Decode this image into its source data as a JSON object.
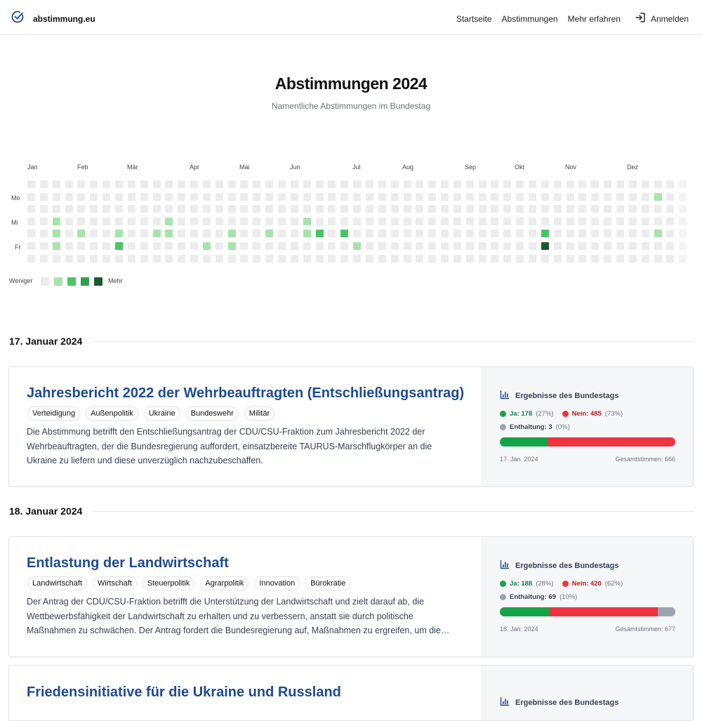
{
  "nav": {
    "brand": "abstimmung.eu",
    "links": [
      "Startseite",
      "Abstimmungen",
      "Mehr erfahren"
    ],
    "login": "Anmelden"
  },
  "hero": {
    "title": "Abstimmungen 2024",
    "subtitle": "Namentliche Abstimmungen im Bundestag"
  },
  "heatmap": {
    "months": [
      "Jan",
      "Feb",
      "Mär",
      "Apr",
      "Mai",
      "Jun",
      "Jul",
      "Aug",
      "Sep",
      "Okt",
      "Nov",
      "Dez"
    ],
    "days": [
      "Mo",
      "Mi",
      "Fr"
    ],
    "legend_less": "Weniger",
    "legend_more": "Mehr",
    "colors": [
      "#ececee",
      "#a7e3ab",
      "#4bc466",
      "#2e9f4c",
      "#1c5a2e"
    ],
    "active": [
      {
        "week": 2,
        "day": 3,
        "level": 1
      },
      {
        "week": 2,
        "day": 4,
        "level": 1
      },
      {
        "week": 2,
        "day": 5,
        "level": 1
      },
      {
        "week": 4,
        "day": 4,
        "level": 1
      },
      {
        "week": 7,
        "day": 4,
        "level": 1
      },
      {
        "week": 7,
        "day": 5,
        "level": 2
      },
      {
        "week": 10,
        "day": 4,
        "level": 1
      },
      {
        "week": 11,
        "day": 3,
        "level": 1
      },
      {
        "week": 11,
        "day": 4,
        "level": 1
      },
      {
        "week": 14,
        "day": 5,
        "level": 1
      },
      {
        "week": 16,
        "day": 4,
        "level": 1
      },
      {
        "week": 16,
        "day": 5,
        "level": 1
      },
      {
        "week": 19,
        "day": 4,
        "level": 1
      },
      {
        "week": 22,
        "day": 3,
        "level": 1
      },
      {
        "week": 22,
        "day": 4,
        "level": 1
      },
      {
        "week": 23,
        "day": 4,
        "level": 2
      },
      {
        "week": 25,
        "day": 4,
        "level": 2
      },
      {
        "week": 26,
        "day": 5,
        "level": 1
      },
      {
        "week": 41,
        "day": 4,
        "level": 2
      },
      {
        "week": 41,
        "day": 5,
        "level": 4
      },
      {
        "week": 50,
        "day": 1,
        "level": 1
      },
      {
        "week": 50,
        "day": 4,
        "level": 1
      }
    ]
  },
  "sections": [
    {
      "date": "17. Januar 2024",
      "card": {
        "title": "Jahresbericht 2022 der Wehrbeauftragten (Entschließungsantrag)",
        "tags": [
          "Verteidigung",
          "Außenpolitik",
          "Ukraine",
          "Bundeswehr",
          "Militär"
        ],
        "description": "Die Abstimmung betrifft den Entschließungsantrag der CDU/CSU-Fraktion zum Jahresbericht 2022 der Wehrbeauftragten, der die Bundesregierung auffordert, einsatzbereite TAURUS-Marschflugkörper an die Ukraine zu liefern und diese unverzüglich nachzubeschaffen.",
        "results_title": "Ergebnisse des Bundestags",
        "yes_label": "Ja: 178",
        "yes_pct": "(27%)",
        "no_label": "Nein: 485",
        "no_pct": "(73%)",
        "abstain_label": "Enthaltung: 3",
        "abstain_pct": "(0%)",
        "yes_share": 0.27,
        "no_share": 0.73,
        "abstain_share": 0.0,
        "short_date": "17. Jan. 2024",
        "total": "Gesamtstimmen: 666"
      }
    },
    {
      "date": "18. Januar 2024",
      "card": {
        "title": "Entlastung der Landwirtschaft",
        "tags": [
          "Landwirtschaft",
          "Wirtschaft",
          "Steuerpolitik",
          "Agrarpolitik",
          "Innovation",
          "Bürokratie"
        ],
        "description": "Der Antrag der CDU/CSU-Fraktion betrifft die Unterstützung der Landwirtschaft und zielt darauf ab, die Wettbewerbsfähigkeit der Landwirtschaft zu erhalten und zu verbessern, anstatt sie durch politische Maßnahmen zu schwächen. Der Antrag fordert die Bundesregierung auf, Maßnahmen zu ergreifen, um die…",
        "results_title": "Ergebnisse des Bundestags",
        "yes_label": "Ja: 188",
        "yes_pct": "(28%)",
        "no_label": "Nein: 420",
        "no_pct": "(62%)",
        "abstain_label": "Enthaltung: 69",
        "abstain_pct": "(10%)",
        "yes_share": 0.28,
        "no_share": 0.62,
        "abstain_share": 0.1,
        "short_date": "18. Jan. 2024",
        "total": "Gesamtstimmen: 677"
      },
      "card2": {
        "title": "Friedensinitiative für die Ukraine und Russland",
        "results_title": "Ergebnisse des Bundestags"
      }
    }
  ],
  "colors": {
    "yes": "#16a34a",
    "no": "#ef3340",
    "abstain": "#9ca3af",
    "title": "#1e4b91"
  }
}
